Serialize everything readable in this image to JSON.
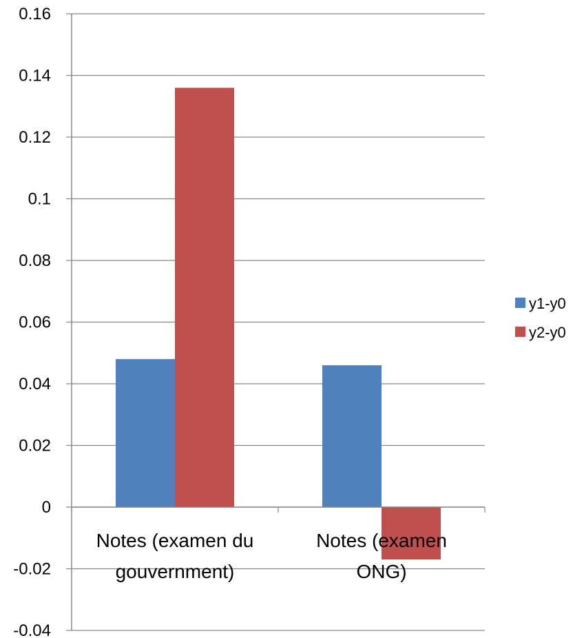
{
  "chart_data": {
    "type": "bar",
    "categories": [
      [
        "Notes (examen du",
        "gouvernment)"
      ],
      [
        "Notes (examen",
        "ONG)"
      ]
    ],
    "series": [
      {
        "name": "y1-y0",
        "color": "#4F81BD",
        "values": [
          0.048,
          0.046
        ]
      },
      {
        "name": "y2-y0",
        "color": "#C0504D",
        "values": [
          0.136,
          -0.017
        ]
      }
    ],
    "yticks": [
      "0.16",
      "0.14",
      "0.12",
      "0.1",
      "0.08",
      "0.06",
      "0.04",
      "0.02",
      "0",
      "-0.02",
      "-0.04"
    ],
    "ylim": [
      -0.04,
      0.16
    ],
    "grid": true,
    "legend_position": "right",
    "title": "",
    "xlabel": "",
    "ylabel": ""
  }
}
